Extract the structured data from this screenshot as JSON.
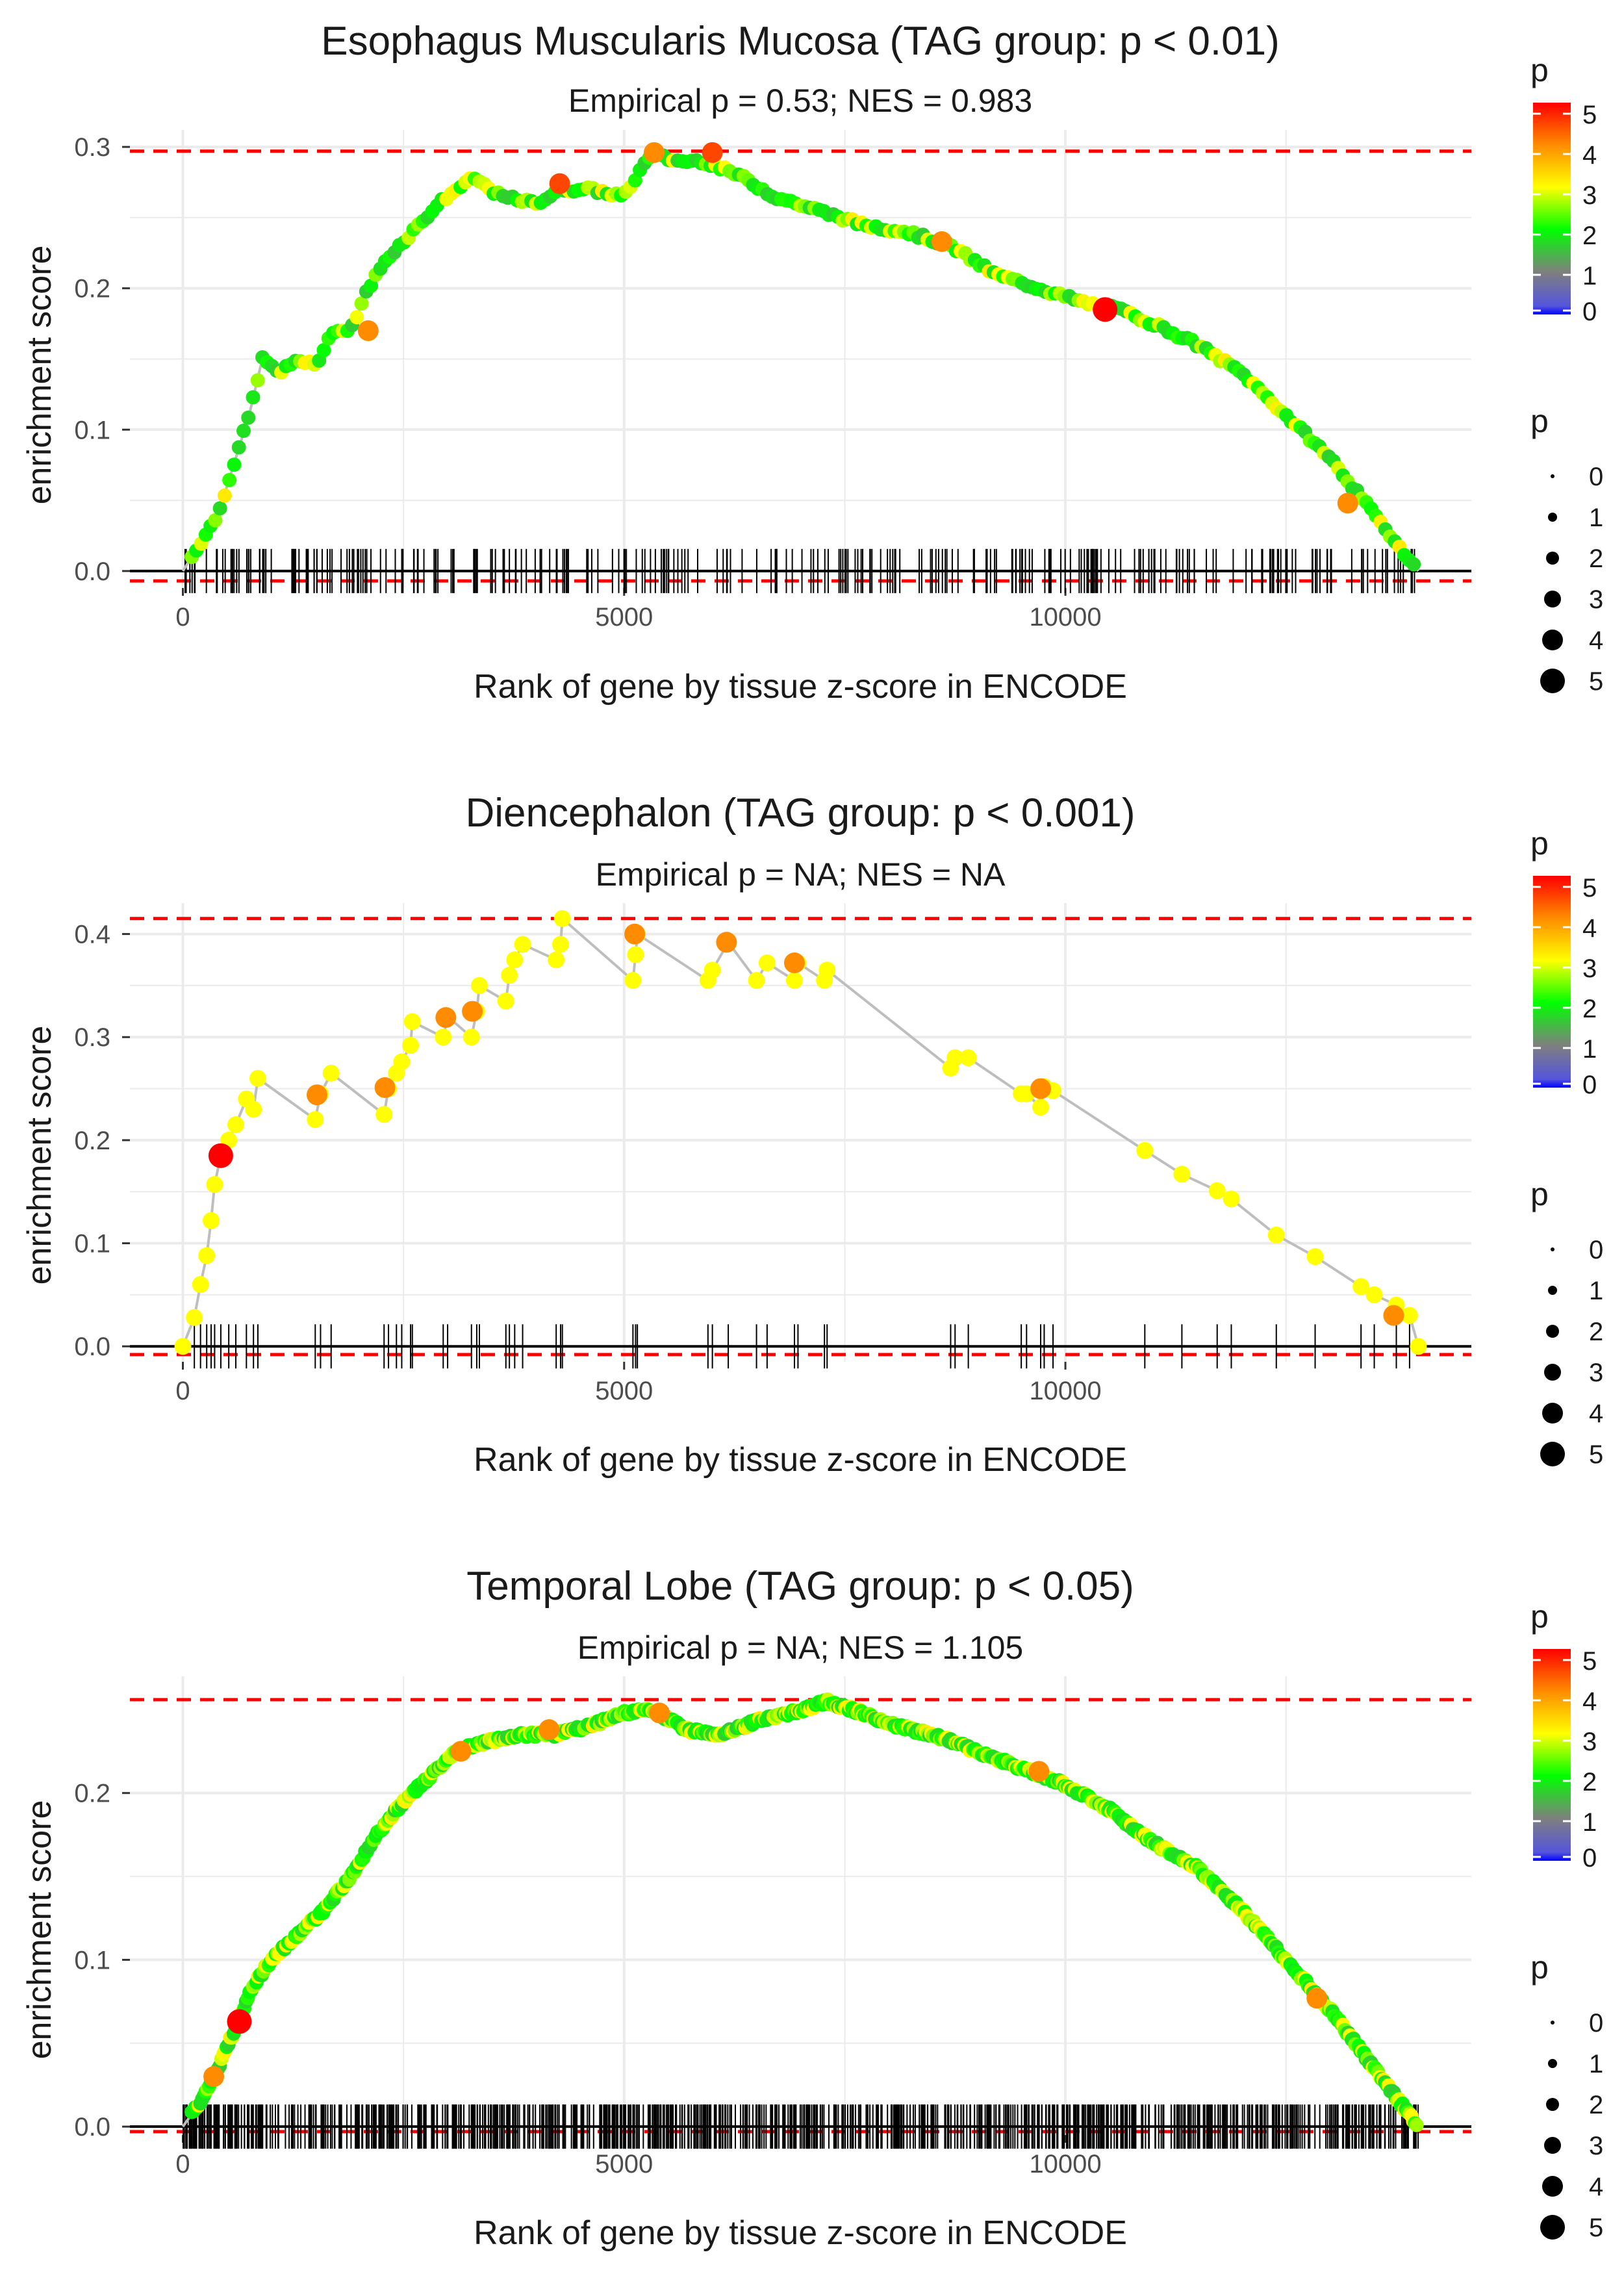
{
  "colors": {
    "bg": "#ffffff",
    "grid": "#ebebeb",
    "threshold": "#ff0000",
    "path": "#bebebe",
    "hits": "#000000",
    "scale": [
      "#0000ff",
      "#7f7f7f",
      "#00ff00",
      "#ffff00",
      "#ff8c00",
      "#ff0000"
    ]
  },
  "chart_data": [
    {
      "type": "scatter",
      "title": "Esophagus Muscularis Mucosa (TAG group: p < 0.01)",
      "subtitle": "Empirical p = 0.53; NES = 0.983",
      "xlabel": "Rank of gene by tissue z-score in ENCODE",
      "ylabel": "enrichment score",
      "xlim": [
        -600,
        14600
      ],
      "ylim": [
        -0.012,
        0.312
      ],
      "xticks": [
        0,
        5000,
        10000
      ],
      "xtick_labels": [
        "0",
        "5000",
        "10000"
      ],
      "yticks": [
        0,
        0.1,
        0.2,
        0.3
      ],
      "ytick_labels": [
        "0.0",
        "0.1",
        "0.2",
        "0.3"
      ],
      "max_es_line": 0.297,
      "min_line": -0.007,
      "n_hits": 290,
      "curve": [
        [
          0,
          0
        ],
        [
          200,
          0.02
        ],
        [
          400,
          0.04
        ],
        [
          600,
          0.08
        ],
        [
          750,
          0.11
        ],
        [
          900,
          0.15
        ],
        [
          1100,
          0.14
        ],
        [
          1300,
          0.15
        ],
        [
          1500,
          0.145
        ],
        [
          1700,
          0.17
        ],
        [
          1900,
          0.17
        ],
        [
          2100,
          0.2
        ],
        [
          2300,
          0.22
        ],
        [
          2600,
          0.24
        ],
        [
          2900,
          0.26
        ],
        [
          3100,
          0.27
        ],
        [
          3300,
          0.278
        ],
        [
          3600,
          0.265
        ],
        [
          4000,
          0.26
        ],
        [
          4300,
          0.27
        ],
        [
          4600,
          0.27
        ],
        [
          5000,
          0.265
        ],
        [
          5300,
          0.295
        ],
        [
          5600,
          0.29
        ],
        [
          5900,
          0.29
        ],
        [
          6300,
          0.28
        ],
        [
          6700,
          0.265
        ],
        [
          7200,
          0.255
        ],
        [
          7700,
          0.245
        ],
        [
          8200,
          0.24
        ],
        [
          8700,
          0.23
        ],
        [
          9200,
          0.21
        ],
        [
          9700,
          0.2
        ],
        [
          10200,
          0.19
        ],
        [
          10600,
          0.185
        ],
        [
          11000,
          0.175
        ],
        [
          11500,
          0.16
        ],
        [
          12000,
          0.14
        ],
        [
          12500,
          0.11
        ],
        [
          13000,
          0.08
        ],
        [
          13500,
          0.04
        ],
        [
          14000,
          0
        ]
      ],
      "big_points": [
        [
          4270,
          0.274,
          4.5
        ],
        [
          5340,
          0.296,
          4
        ],
        [
          6000,
          0.296,
          4.5
        ],
        [
          10450,
          0.185,
          5
        ],
        [
          8600,
          0.233,
          4
        ],
        [
          2100,
          0.17,
          4
        ],
        [
          13200,
          0.048,
          4
        ]
      ],
      "legend": {
        "color_title": "p",
        "size_title": "p",
        "color_ticks": [
          "0",
          "1",
          "2",
          "3",
          "4",
          "5"
        ],
        "size_ticks": [
          "0",
          "1",
          "2",
          "3",
          "4",
          "5"
        ]
      }
    },
    {
      "type": "scatter",
      "title": "Diencephalon (TAG group: p < 0.001)",
      "subtitle": "Empirical p = NA; NES = NA",
      "xlabel": "Rank of gene by tissue z-score in ENCODE",
      "ylabel": "enrichment score",
      "xlim": [
        -600,
        14600
      ],
      "ylim": [
        -0.015,
        0.43
      ],
      "xticks": [
        0,
        5000,
        10000
      ],
      "xtick_labels": [
        "0",
        "5000",
        "10000"
      ],
      "yticks": [
        0,
        0.1,
        0.2,
        0.3,
        0.4
      ],
      "ytick_labels": [
        "0.0",
        "0.1",
        "0.2",
        "0.3",
        "0.4"
      ],
      "max_es_line": 0.415,
      "min_line": -0.008,
      "n_hits": 60,
      "curve": [
        [
          0,
          0
        ],
        [
          130,
          0.028
        ],
        [
          200,
          0.06
        ],
        [
          270,
          0.088
        ],
        [
          320,
          0.122
        ],
        [
          360,
          0.157
        ],
        [
          430,
          0.185
        ],
        [
          520,
          0.2
        ],
        [
          600,
          0.215
        ],
        [
          720,
          0.24
        ],
        [
          800,
          0.23
        ],
        [
          850,
          0.26
        ],
        [
          1500,
          0.22
        ],
        [
          1560,
          0.245
        ],
        [
          1680,
          0.265
        ],
        [
          2280,
          0.225
        ],
        [
          2330,
          0.25
        ],
        [
          2420,
          0.265
        ],
        [
          2480,
          0.276
        ],
        [
          2580,
          0.292
        ],
        [
          2600,
          0.315
        ],
        [
          2950,
          0.3
        ],
        [
          3000,
          0.32
        ],
        [
          3270,
          0.3
        ],
        [
          3330,
          0.325
        ],
        [
          3360,
          0.35
        ],
        [
          3660,
          0.335
        ],
        [
          3700,
          0.36
        ],
        [
          3760,
          0.375
        ],
        [
          3850,
          0.39
        ],
        [
          4230,
          0.375
        ],
        [
          4280,
          0.39
        ],
        [
          4300,
          0.415
        ],
        [
          5100,
          0.355
        ],
        [
          5130,
          0.38
        ],
        [
          5150,
          0.4
        ],
        [
          5950,
          0.355
        ],
        [
          6000,
          0.365
        ],
        [
          6180,
          0.392
        ],
        [
          6500,
          0.355
        ],
        [
          6620,
          0.372
        ],
        [
          6930,
          0.355
        ],
        [
          6970,
          0.372
        ],
        [
          7270,
          0.355
        ],
        [
          7300,
          0.365
        ],
        [
          8700,
          0.27
        ],
        [
          8750,
          0.28
        ],
        [
          8900,
          0.28
        ],
        [
          9500,
          0.245
        ],
        [
          9560,
          0.245
        ],
        [
          9720,
          0.232
        ],
        [
          9760,
          0.252
        ],
        [
          9860,
          0.248
        ],
        [
          10900,
          0.19
        ],
        [
          11320,
          0.167
        ],
        [
          11720,
          0.151
        ],
        [
          11880,
          0.143
        ],
        [
          12390,
          0.108
        ],
        [
          12830,
          0.087
        ],
        [
          13350,
          0.058
        ],
        [
          13500,
          0.05
        ],
        [
          13750,
          0.04
        ],
        [
          13900,
          0.03
        ],
        [
          14000,
          0
        ]
      ],
      "big_points": [
        [
          430,
          0.185,
          5
        ],
        [
          1520,
          0.244,
          4
        ],
        [
          2290,
          0.251,
          4
        ],
        [
          2980,
          0.319,
          4
        ],
        [
          3280,
          0.325,
          4
        ],
        [
          5120,
          0.4,
          4
        ],
        [
          6160,
          0.392,
          4
        ],
        [
          6930,
          0.372,
          4
        ],
        [
          9720,
          0.25,
          4
        ],
        [
          13720,
          0.03,
          4
        ]
      ],
      "legend": {
        "color_title": "p",
        "size_title": "p",
        "color_ticks": [
          "0",
          "1",
          "2",
          "3",
          "4",
          "5"
        ],
        "size_ticks": [
          "0",
          "1",
          "2",
          "3",
          "4",
          "5"
        ]
      }
    },
    {
      "type": "scatter",
      "title": "Temporal Lobe (TAG group: p < 0.05)",
      "subtitle": "Empirical p = NA; NES = 1.105",
      "xlabel": "Rank of gene by tissue z-score in ENCODE",
      "ylabel": "enrichment score",
      "xlim": [
        -600,
        14600
      ],
      "ylim": [
        -0.005,
        0.27
      ],
      "xticks": [
        0,
        5000,
        10000
      ],
      "xtick_labels": [
        "0",
        "5000",
        "10000"
      ],
      "yticks": [
        0,
        0.1,
        0.2
      ],
      "ytick_labels": [
        "0.0",
        "0.1",
        "0.2"
      ],
      "max_es_line": 0.256,
      "min_line": -0.003,
      "n_hits": 900,
      "curve": [
        [
          0,
          0
        ],
        [
          200,
          0.015
        ],
        [
          400,
          0.035
        ],
        [
          600,
          0.06
        ],
        [
          800,
          0.085
        ],
        [
          1000,
          0.1
        ],
        [
          1300,
          0.115
        ],
        [
          1600,
          0.13
        ],
        [
          1900,
          0.15
        ],
        [
          2200,
          0.175
        ],
        [
          2500,
          0.195
        ],
        [
          2800,
          0.21
        ],
        [
          3100,
          0.225
        ],
        [
          3400,
          0.23
        ],
        [
          3800,
          0.235
        ],
        [
          4200,
          0.235
        ],
        [
          4600,
          0.24
        ],
        [
          5000,
          0.248
        ],
        [
          5300,
          0.25
        ],
        [
          5700,
          0.238
        ],
        [
          6100,
          0.235
        ],
        [
          6500,
          0.243
        ],
        [
          6900,
          0.248
        ],
        [
          7300,
          0.255
        ],
        [
          7700,
          0.248
        ],
        [
          8100,
          0.24
        ],
        [
          8500,
          0.235
        ],
        [
          9000,
          0.225
        ],
        [
          9500,
          0.215
        ],
        [
          10000,
          0.205
        ],
        [
          10500,
          0.19
        ],
        [
          11000,
          0.17
        ],
        [
          11500,
          0.155
        ],
        [
          12000,
          0.13
        ],
        [
          12500,
          0.1
        ],
        [
          13000,
          0.07
        ],
        [
          13500,
          0.035
        ],
        [
          14000,
          0
        ]
      ],
      "big_points": [
        [
          640,
          0.063,
          5
        ],
        [
          3150,
          0.225,
          4
        ],
        [
          4150,
          0.238,
          4
        ],
        [
          5400,
          0.248,
          4
        ],
        [
          9700,
          0.213,
          4
        ],
        [
          12850,
          0.077,
          4
        ],
        [
          350,
          0.03,
          4
        ]
      ],
      "legend": {
        "color_title": "p",
        "size_title": "p",
        "color_ticks": [
          "0",
          "1",
          "2",
          "3",
          "4",
          "5"
        ],
        "size_ticks": [
          "0",
          "1",
          "2",
          "3",
          "4",
          "5"
        ]
      }
    }
  ]
}
